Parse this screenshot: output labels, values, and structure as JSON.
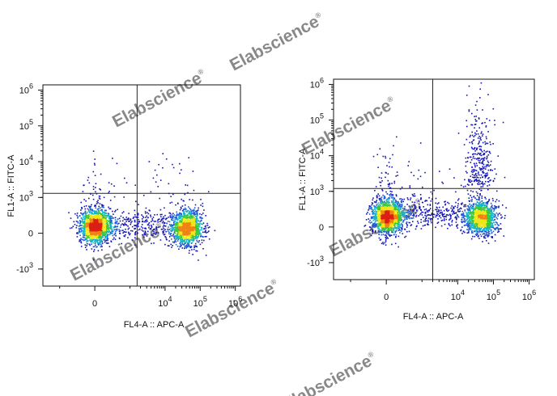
{
  "watermark": {
    "text": "Elabscience",
    "mark": "®",
    "color": "#c9c9c9"
  },
  "colors": {
    "axis": "#111111",
    "gate": "#222222",
    "density_scale": [
      "#1414b4",
      "#1e5ad2",
      "#14b4c8",
      "#3cc83c",
      "#f0e614",
      "#f08214",
      "#dc1e14"
    ]
  },
  "chart_data": [
    {
      "type": "scatter",
      "subtype": "flow-cytometry-density-dot-plot",
      "title": "",
      "xlabel": "FL4-A :: APC-A",
      "ylabel": "FL1-A :: FITC-A",
      "x_scale": "biexponential",
      "y_scale": "biexponential",
      "x_ticks": [
        {
          "value": 0,
          "base": "0",
          "exp": ""
        },
        {
          "value": 10000,
          "base": "10",
          "exp": "4"
        },
        {
          "value": 100000,
          "base": "10",
          "exp": "5"
        },
        {
          "value": 1000000,
          "base": "10",
          "exp": "6"
        }
      ],
      "y_ticks": [
        {
          "value": 1000000,
          "base": "10",
          "exp": "6"
        },
        {
          "value": 100000,
          "base": "10",
          "exp": "5"
        },
        {
          "value": 10000,
          "base": "10",
          "exp": "4"
        },
        {
          "value": 1000,
          "base": "10",
          "exp": "3"
        },
        {
          "value": 0,
          "base": "0",
          "exp": ""
        },
        {
          "value": -1000,
          "base": "-10",
          "exp": "3"
        }
      ],
      "quadrant_gate": {
        "x": 1600,
        "y": 1300
      },
      "populations": [
        {
          "name": "APC-negative",
          "x_center": 0,
          "y_center": 200,
          "relative_count": 0.46
        },
        {
          "name": "APC-positive",
          "x_center": 42000,
          "y_center": 150,
          "relative_count": 0.38
        },
        {
          "name": "bridge-events",
          "x_center": 5000,
          "y_center": 250,
          "relative_count": 0.16
        }
      ],
      "grid": false,
      "legend": "none"
    },
    {
      "type": "scatter",
      "subtype": "flow-cytometry-density-dot-plot",
      "title": "",
      "xlabel": "FL4-A :: APC-A",
      "ylabel": "FL1-A :: FITC-A",
      "x_scale": "biexponential",
      "y_scale": "biexponential",
      "x_ticks": [
        {
          "value": 0,
          "base": "0",
          "exp": ""
        },
        {
          "value": 10000,
          "base": "10",
          "exp": "4"
        },
        {
          "value": 100000,
          "base": "10",
          "exp": "5"
        },
        {
          "value": 1000000,
          "base": "10",
          "exp": "6"
        }
      ],
      "y_ticks": [
        {
          "value": 1000000,
          "base": "10",
          "exp": "6"
        },
        {
          "value": 100000,
          "base": "10",
          "exp": "5"
        },
        {
          "value": 10000,
          "base": "10",
          "exp": "4"
        },
        {
          "value": 1000,
          "base": "10",
          "exp": "3"
        },
        {
          "value": 0,
          "base": "0",
          "exp": ""
        },
        {
          "value": -1000,
          "base": "-10",
          "exp": "3"
        }
      ],
      "quadrant_gate": {
        "x": 2000,
        "y": 1200
      },
      "populations": [
        {
          "name": "APC-negative",
          "x_center": 0,
          "y_center": 300,
          "relative_count": 0.44
        },
        {
          "name": "APC-positive",
          "x_center": 45000,
          "y_center": 250,
          "relative_count": 0.32
        },
        {
          "name": "APC-positive FITC-high",
          "x_center": 38000,
          "y_center": 9000,
          "relative_count": 0.08
        },
        {
          "name": "bridge-events",
          "x_center": 4000,
          "y_center": 400,
          "relative_count": 0.16
        }
      ],
      "grid": false,
      "legend": "none"
    }
  ]
}
